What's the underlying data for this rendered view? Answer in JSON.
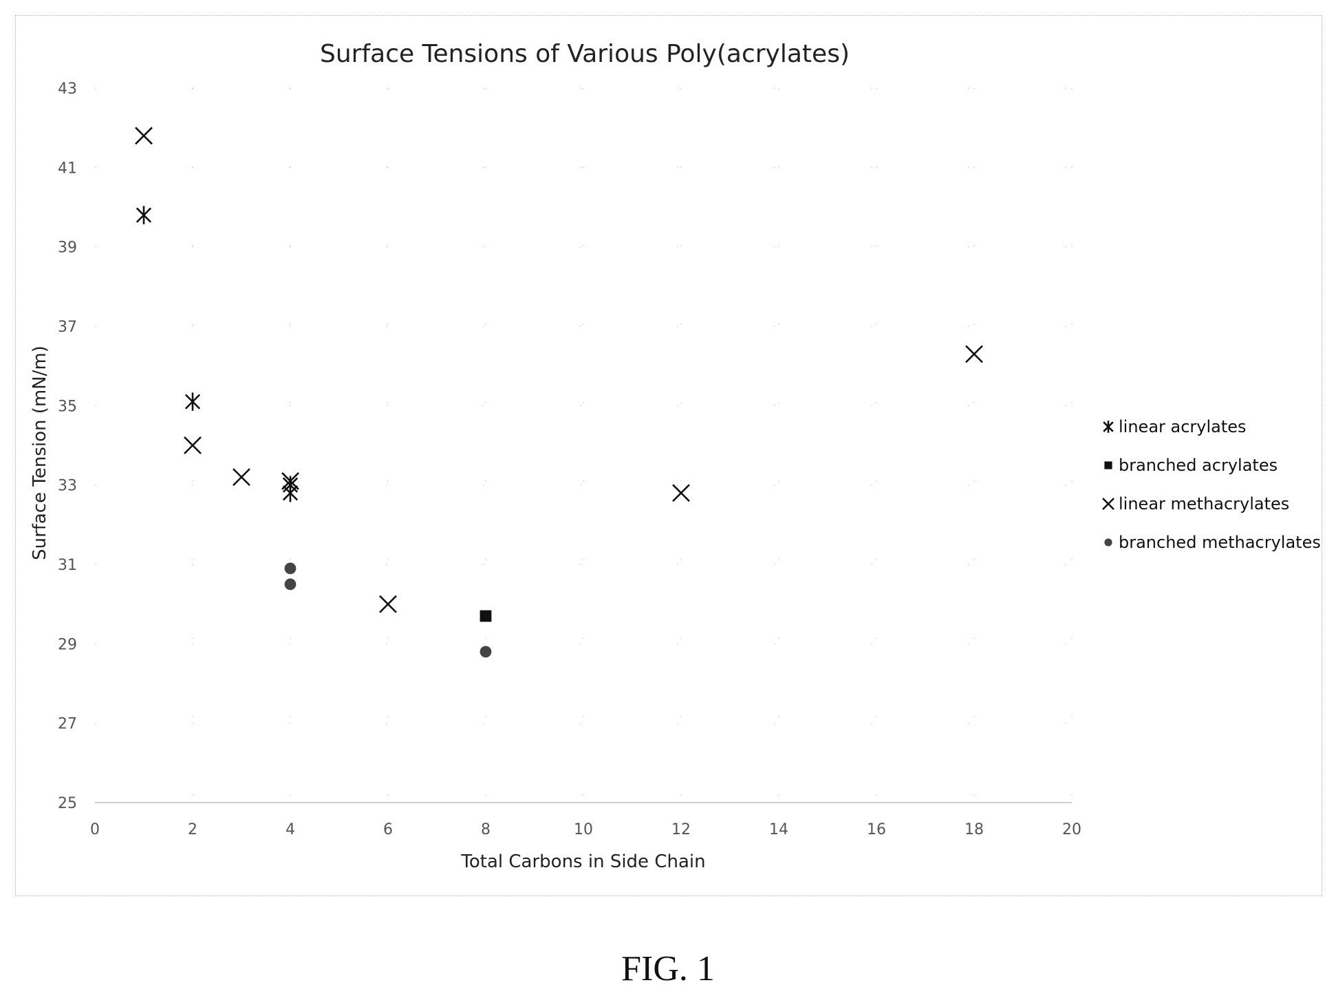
{
  "chart_data": {
    "type": "scatter",
    "title": "Surface Tensions of Various Poly(acrylates)",
    "xlabel": "Total Carbons in Side Chain",
    "ylabel": "Surface Tension (mN/m)",
    "xlim": [
      0,
      20
    ],
    "ylim": [
      25,
      43
    ],
    "xticks": [
      0,
      2,
      4,
      6,
      8,
      10,
      12,
      14,
      16,
      18,
      20
    ],
    "yticks": [
      25,
      27,
      29,
      31,
      33,
      35,
      37,
      39,
      41,
      43
    ],
    "grid": true,
    "legend_position": "right",
    "series": [
      {
        "name": "linear acrylates",
        "marker": "asterisk",
        "color": "#111111",
        "points": [
          [
            1,
            39.8
          ],
          [
            2,
            35.1
          ],
          [
            4,
            32.8
          ],
          [
            4,
            33.0
          ]
        ]
      },
      {
        "name": "branched acrylates",
        "marker": "square",
        "color": "#111111",
        "points": [
          [
            8,
            29.7
          ]
        ]
      },
      {
        "name": "linear methacrylates",
        "marker": "x",
        "color": "#111111",
        "points": [
          [
            1,
            41.8
          ],
          [
            2,
            34.0
          ],
          [
            3,
            33.2
          ],
          [
            4,
            33.1
          ],
          [
            6,
            30.0
          ],
          [
            12,
            32.8
          ],
          [
            18,
            36.3
          ]
        ]
      },
      {
        "name": "branched methacrylates",
        "marker": "circle",
        "color": "#444444",
        "points": [
          [
            4,
            30.9
          ],
          [
            4,
            30.5
          ],
          [
            8,
            28.8
          ]
        ]
      }
    ]
  },
  "caption": "FIG. 1"
}
